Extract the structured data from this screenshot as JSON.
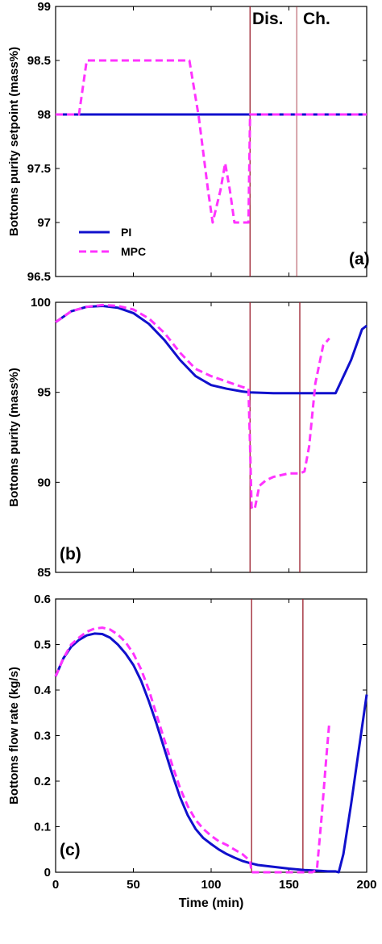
{
  "chart_data": [
    {
      "type": "line",
      "panel_label": "(a)",
      "title": "",
      "xlabel": "",
      "ylabel": "Bottoms purity setpoint (mass%)",
      "xlim": [
        0,
        200
      ],
      "ylim": [
        96.5,
        99
      ],
      "yticks": [
        96.5,
        97,
        97.5,
        98,
        98.5,
        99
      ],
      "ytick_labels": [
        "96.5",
        "97",
        "97.5",
        "98",
        "98.5",
        "99"
      ],
      "xticks": [
        0,
        50,
        100,
        150,
        200
      ],
      "xtick_labels": [],
      "grid": false,
      "legend": {
        "placement": "bottom-left",
        "entries": [
          "PI",
          "MPC"
        ]
      },
      "vlines": [
        125,
        155
      ],
      "annotations": [
        "Dis.",
        "Ch."
      ],
      "series": [
        {
          "name": "PI",
          "color": "#1010cc",
          "style": "solid",
          "x": [
            0,
            200
          ],
          "y": [
            98,
            98
          ]
        },
        {
          "name": "MPC",
          "color": "#ff33ff",
          "style": "dashed",
          "x": [
            0,
            15,
            20,
            86,
            92,
            98,
            101,
            106,
            109,
            112,
            115,
            116,
            120,
            124,
            125,
            200
          ],
          "y": [
            98,
            98,
            98.5,
            98.5,
            97.98,
            97.3,
            97.0,
            97.3,
            97.55,
            97.3,
            97.0,
            97.0,
            97.0,
            97.0,
            98,
            98
          ]
        }
      ]
    },
    {
      "type": "line",
      "panel_label": "(b)",
      "title": "",
      "xlabel": "",
      "ylabel": "Bottoms purity (mass%)",
      "xlim": [
        0,
        200
      ],
      "ylim": [
        85,
        100
      ],
      "yticks": [
        85,
        90,
        95,
        100
      ],
      "ytick_labels": [
        "85",
        "90",
        "95",
        "100"
      ],
      "xticks": [
        0,
        50,
        100,
        150,
        200
      ],
      "xtick_labels": [],
      "grid": false,
      "vlines": [
        125,
        157
      ],
      "series": [
        {
          "name": "PI",
          "color": "#1010cc",
          "style": "solid",
          "x": [
            0,
            10,
            20,
            30,
            40,
            50,
            60,
            70,
            80,
            90,
            100,
            110,
            120,
            125,
            140,
            157,
            170,
            180,
            190,
            197,
            200
          ],
          "y": [
            98.9,
            99.5,
            99.75,
            99.8,
            99.7,
            99.4,
            98.8,
            97.9,
            96.8,
            95.9,
            95.4,
            95.2,
            95.05,
            95.0,
            94.95,
            94.95,
            94.95,
            94.95,
            96.8,
            98.5,
            98.7
          ]
        },
        {
          "name": "MPC",
          "color": "#ff33ff",
          "style": "dashed",
          "x": [
            0,
            10,
            20,
            30,
            40,
            50,
            60,
            70,
            80,
            90,
            100,
            110,
            120,
            124,
            125,
            126,
            128,
            131,
            135,
            140,
            150,
            157,
            160,
            163,
            167,
            172,
            176
          ],
          "y": [
            98.9,
            99.5,
            99.75,
            99.85,
            99.8,
            99.6,
            99.1,
            98.3,
            97.2,
            96.3,
            95.9,
            95.6,
            95.3,
            95.2,
            92.0,
            88.6,
            88.5,
            89.8,
            90.1,
            90.3,
            90.5,
            90.5,
            90.6,
            92.0,
            95.5,
            97.6,
            98.0
          ]
        }
      ]
    },
    {
      "type": "line",
      "panel_label": "(c)",
      "title": "",
      "xlabel": "Time (min)",
      "ylabel": "Bottoms flow rate (kg/s)",
      "xlim": [
        0,
        200
      ],
      "ylim": [
        0,
        0.6
      ],
      "yticks": [
        0,
        0.1,
        0.2,
        0.3,
        0.4,
        0.5,
        0.6
      ],
      "ytick_labels": [
        "0",
        "0.1",
        "0.2",
        "0.3",
        "0.4",
        "0.5",
        "0.6"
      ],
      "xticks": [
        0,
        50,
        100,
        150,
        200
      ],
      "xtick_labels": [
        "0",
        "50",
        "100",
        "150",
        "200"
      ],
      "grid": false,
      "vlines": [
        126,
        159
      ],
      "series": [
        {
          "name": "PI",
          "color": "#1010cc",
          "style": "solid",
          "x": [
            0,
            5,
            10,
            15,
            20,
            25,
            30,
            35,
            40,
            45,
            50,
            55,
            60,
            65,
            70,
            75,
            80,
            85,
            90,
            95,
            100,
            105,
            110,
            115,
            120,
            125,
            130,
            140,
            150,
            160,
            170,
            175,
            180,
            182,
            185,
            190,
            195,
            200
          ],
          "y": [
            0.43,
            0.47,
            0.495,
            0.51,
            0.52,
            0.524,
            0.523,
            0.515,
            0.5,
            0.48,
            0.455,
            0.42,
            0.375,
            0.325,
            0.27,
            0.215,
            0.165,
            0.125,
            0.095,
            0.075,
            0.062,
            0.05,
            0.04,
            0.032,
            0.025,
            0.02,
            0.016,
            0.012,
            0.008,
            0.005,
            0.003,
            0.002,
            0.002,
            0.0,
            0.04,
            0.15,
            0.27,
            0.39
          ]
        },
        {
          "name": "MPC",
          "color": "#ff33ff",
          "style": "dashed",
          "x": [
            0,
            5,
            10,
            15,
            20,
            25,
            30,
            35,
            40,
            45,
            50,
            55,
            60,
            65,
            70,
            75,
            80,
            85,
            90,
            95,
            100,
            105,
            110,
            115,
            120,
            125,
            126,
            130,
            140,
            150,
            160,
            165,
            168,
            171,
            174,
            176
          ],
          "y": [
            0.43,
            0.47,
            0.5,
            0.515,
            0.528,
            0.535,
            0.537,
            0.533,
            0.522,
            0.505,
            0.48,
            0.445,
            0.4,
            0.345,
            0.29,
            0.235,
            0.185,
            0.145,
            0.115,
            0.095,
            0.08,
            0.068,
            0.06,
            0.05,
            0.04,
            0.025,
            0.0,
            0.0,
            0.0,
            0.0,
            0.0,
            0.0,
            0.005,
            0.12,
            0.25,
            0.33
          ]
        }
      ]
    }
  ]
}
